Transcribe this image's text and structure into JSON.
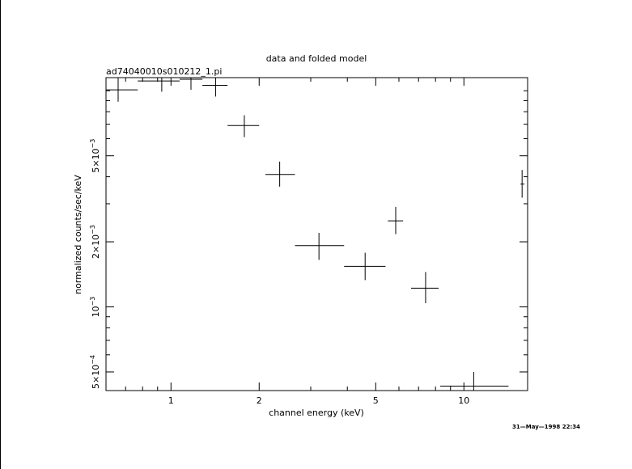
{
  "chart_data": {
    "type": "scatter",
    "title": "data and folded model",
    "subtitle": "ad74040010s010212_1.pi",
    "xlabel": "channel energy (keV)",
    "ylabel": "normalized counts/sec/keV",
    "xscale": "log",
    "yscale": "log",
    "xlim": [
      0.6,
      16.5
    ],
    "ylim": [
      0.00041,
      0.0115
    ],
    "xticks": [
      {
        "value": 1,
        "label": "1"
      },
      {
        "value": 2,
        "label": "2"
      },
      {
        "value": 5,
        "label": "5"
      },
      {
        "value": 10,
        "label": "10"
      }
    ],
    "yticks": [
      {
        "value": 0.0005,
        "base": "5×10",
        "exp": "−4"
      },
      {
        "value": 0.001,
        "base": "10",
        "exp": "−3"
      },
      {
        "value": 0.002,
        "base": "2×10",
        "exp": "−3"
      },
      {
        "value": 0.005,
        "base": "5×10",
        "exp": "−3"
      }
    ],
    "points": [
      {
        "x": 0.66,
        "xlo": 0.6,
        "xhi": 0.77,
        "y": 0.0101,
        "ylo": 0.0089,
        "yhi": 0.0116
      },
      {
        "x": 0.93,
        "xlo": 0.77,
        "xhi": 1.07,
        "y": 0.0111,
        "ylo": 0.0099,
        "yhi": 0.0123
      },
      {
        "x": 1.17,
        "xlo": 1.07,
        "xhi": 1.28,
        "y": 0.0113,
        "ylo": 0.0101,
        "yhi": 0.0125
      },
      {
        "x": 1.42,
        "xlo": 1.28,
        "xhi": 1.56,
        "y": 0.0106,
        "ylo": 0.0094,
        "yhi": 0.0118
      },
      {
        "x": 1.78,
        "xlo": 1.56,
        "xhi": 2.0,
        "y": 0.0069,
        "ylo": 0.0061,
        "yhi": 0.0077
      },
      {
        "x": 2.35,
        "xlo": 2.1,
        "xhi": 2.65,
        "y": 0.0041,
        "ylo": 0.0036,
        "yhi": 0.0047
      },
      {
        "x": 3.2,
        "xlo": 2.65,
        "xhi": 3.9,
        "y": 0.00192,
        "ylo": 0.00165,
        "yhi": 0.0022
      },
      {
        "x": 4.6,
        "xlo": 3.9,
        "xhi": 5.4,
        "y": 0.00154,
        "ylo": 0.00133,
        "yhi": 0.00178
      },
      {
        "x": 5.85,
        "xlo": 5.5,
        "xhi": 6.2,
        "y": 0.0025,
        "ylo": 0.00217,
        "yhi": 0.0029
      },
      {
        "x": 7.4,
        "xlo": 6.6,
        "xhi": 8.2,
        "y": 0.00122,
        "ylo": 0.00104,
        "yhi": 0.00145
      },
      {
        "x": 10.8,
        "xlo": 8.3,
        "xhi": 14.2,
        "y": 0.00043,
        "ylo": 0.00041,
        "yhi": 0.0005
      },
      {
        "x": 15.8,
        "xlo": 15.6,
        "xhi": 16.1,
        "y": 0.0037,
        "ylo": 0.0032,
        "yhi": 0.0043
      }
    ],
    "timestamp": "31—May—1998 22:34"
  }
}
